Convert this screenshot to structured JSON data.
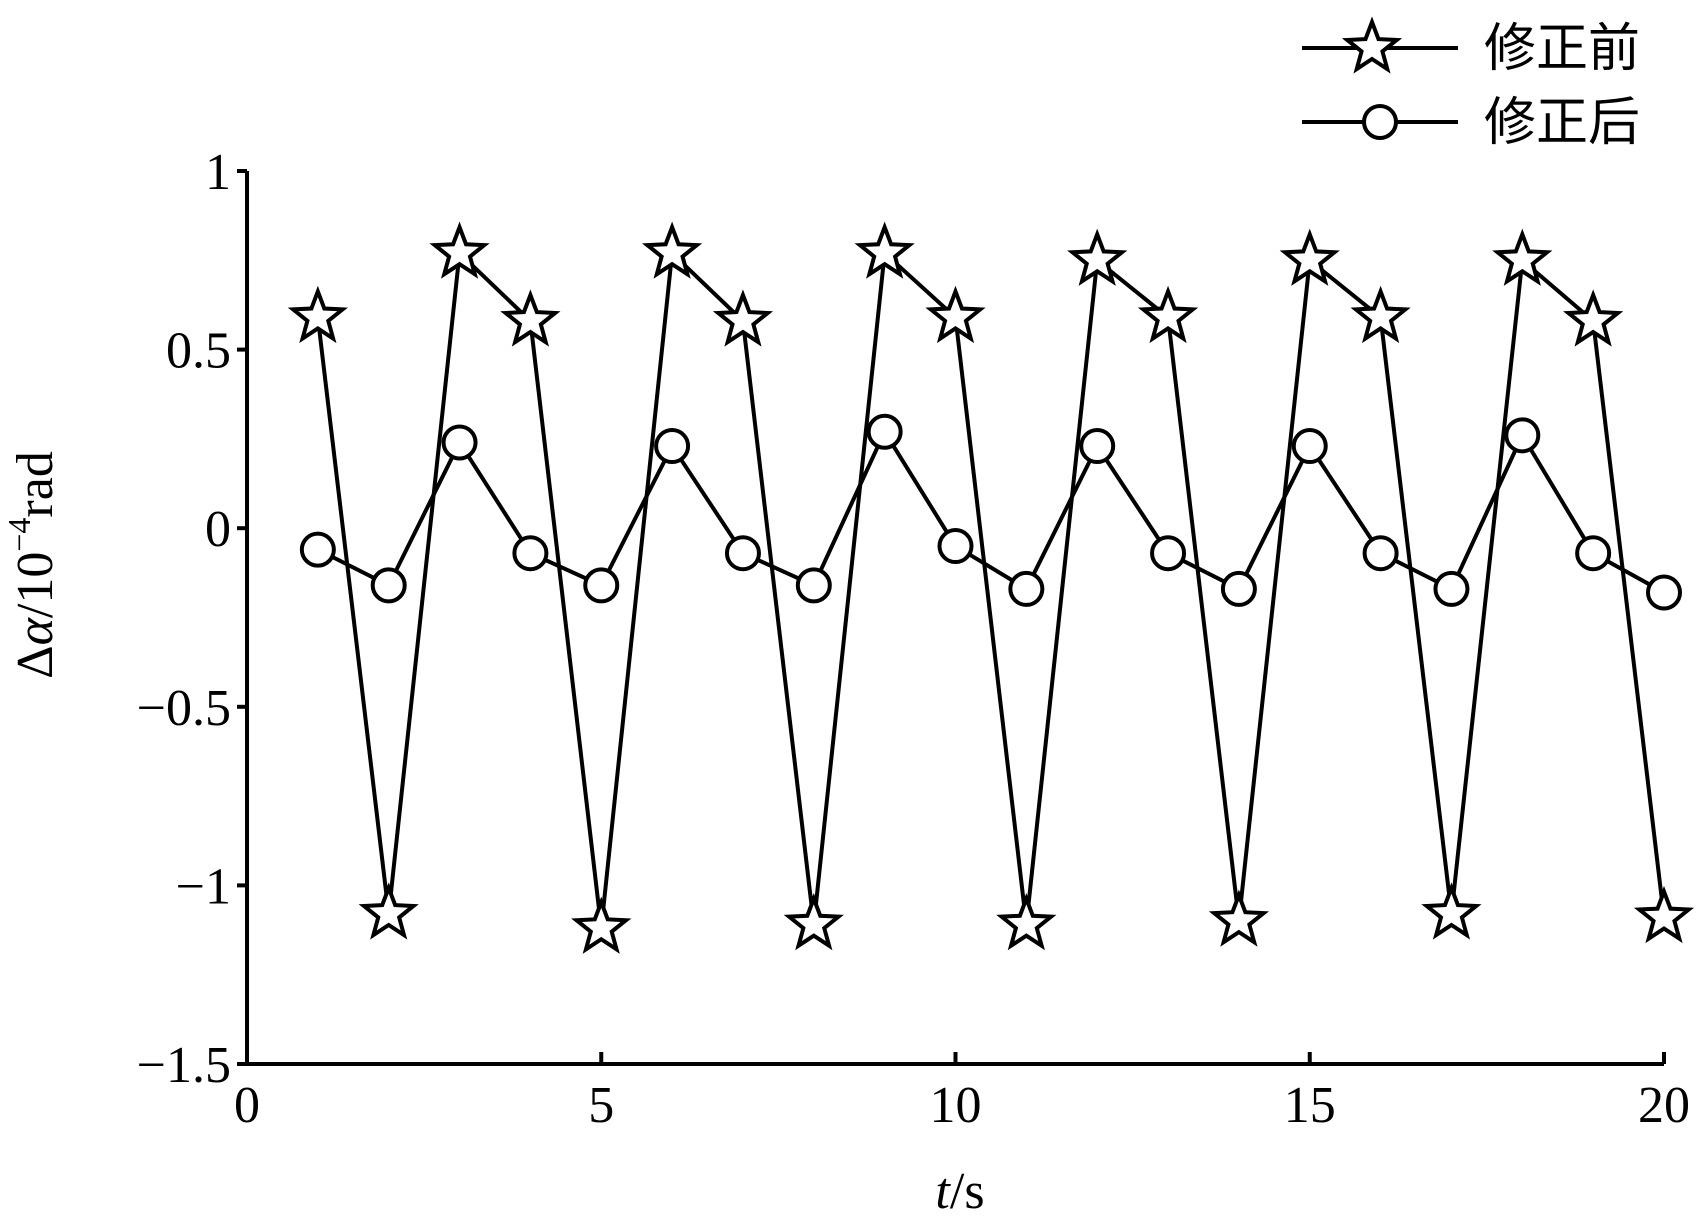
{
  "chart_data": {
    "type": "line",
    "title": "",
    "xlabel": {
      "var": "t",
      "unit": "/s"
    },
    "ylabel": {
      "prefix": "Δ",
      "var": "α",
      "mid": "/10",
      "sup": "−4",
      "unit": "rad"
    },
    "xlim": [
      0,
      20
    ],
    "ylim": [
      -1.5,
      1
    ],
    "xticks": [
      0,
      5,
      10,
      15,
      20
    ],
    "xtick_labels": [
      "0",
      "5",
      "10",
      "15",
      "20"
    ],
    "yticks": [
      1,
      0.5,
      0,
      -0.5,
      -1,
      -1.5
    ],
    "ytick_labels": [
      "1",
      "0.5",
      "0",
      "−0.5",
      "−1",
      "−1.5"
    ],
    "grid": false,
    "legend_position": "top-right",
    "x": [
      1,
      2,
      3,
      4,
      5,
      6,
      7,
      8,
      9,
      10,
      11,
      12,
      13,
      14,
      15,
      16,
      17,
      18,
      19,
      20
    ],
    "series": [
      {
        "name": "修正前",
        "marker": "star",
        "color": "#000000",
        "values": [
          0.59,
          -1.08,
          0.77,
          0.58,
          -1.12,
          0.77,
          0.58,
          -1.11,
          0.77,
          0.59,
          -1.11,
          0.75,
          0.59,
          -1.1,
          0.75,
          0.59,
          -1.08,
          0.75,
          0.58,
          -1.09
        ]
      },
      {
        "name": "修正后",
        "marker": "circle",
        "color": "#000000",
        "values": [
          -0.06,
          -0.16,
          0.24,
          -0.07,
          -0.16,
          0.23,
          -0.07,
          -0.16,
          0.27,
          -0.05,
          -0.17,
          0.23,
          -0.07,
          -0.17,
          0.23,
          -0.07,
          -0.17,
          0.26,
          -0.07,
          -0.18
        ]
      }
    ]
  }
}
